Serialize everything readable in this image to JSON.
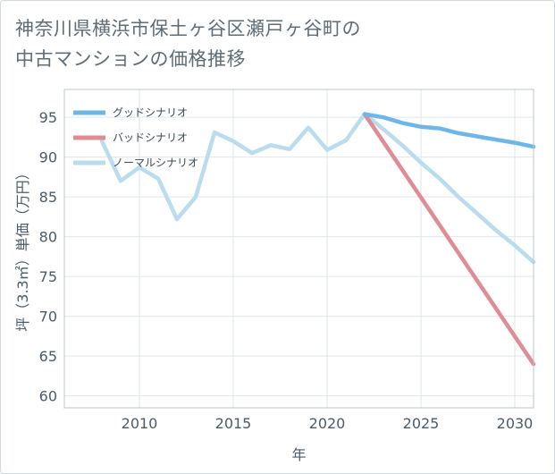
{
  "title_line1": "神奈川県横浜市保土ヶ谷区瀬戸ヶ谷町の",
  "title_line2": "中古マンションの価格推移",
  "chart_data": {
    "type": "line",
    "title": "神奈川県横浜市保土ヶ谷区瀬戸ヶ谷町の中古マンションの価格推移",
    "xlabel": "年",
    "ylabel": "坪（3.3㎡）単価（万円）",
    "xlim": [
      2006,
      2031
    ],
    "ylim": [
      58.5,
      98.5
    ],
    "x_ticks": [
      2010,
      2015,
      2020,
      2025,
      2030
    ],
    "y_ticks": [
      60,
      65,
      70,
      75,
      80,
      85,
      90,
      95
    ],
    "grid": true,
    "legend_position": "top-left",
    "series": [
      {
        "name": "グッドシナリオ",
        "color": "#6cb6ea",
        "x": [
          2022,
          2023,
          2024,
          2025,
          2026,
          2027,
          2028,
          2029,
          2030,
          2031
        ],
        "y": [
          95.4,
          95.0,
          94.3,
          93.8,
          93.6,
          93.0,
          92.6,
          92.2,
          91.8,
          91.3
        ]
      },
      {
        "name": "バッドシナリオ",
        "color": "#e08c94",
        "x": [
          2022,
          2031
        ],
        "y": [
          95.4,
          64.0
        ]
      },
      {
        "name": "ノーマルシナリオ",
        "color": "#b9dcee",
        "x": [
          2008,
          2009,
          2010,
          2011,
          2012,
          2013,
          2014,
          2015,
          2016,
          2017,
          2018,
          2019,
          2020,
          2021,
          2022,
          2023,
          2024,
          2025,
          2026,
          2027,
          2028,
          2029,
          2030,
          2031
        ],
        "y": [
          92.0,
          87.0,
          88.7,
          87.3,
          82.2,
          85.0,
          93.1,
          92.0,
          90.5,
          91.5,
          91.0,
          93.7,
          90.9,
          92.1,
          95.4,
          93.5,
          91.5,
          89.3,
          87.3,
          85.0,
          82.9,
          80.8,
          78.9,
          76.8
        ]
      }
    ]
  }
}
